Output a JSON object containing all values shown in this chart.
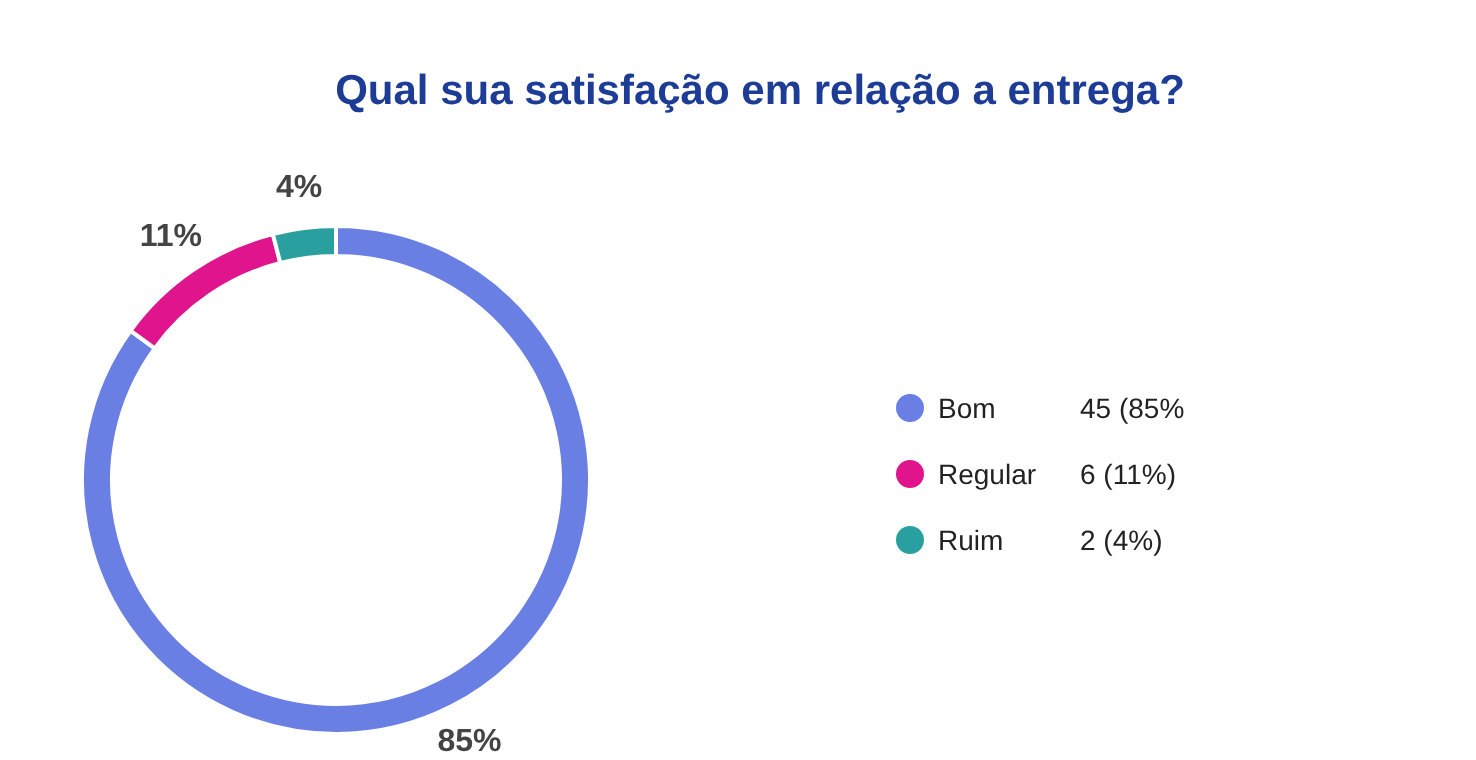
{
  "chart_data": {
    "type": "donut",
    "title": "Qual sua satisfação em relação a entrega?",
    "categories": [
      "Bom",
      "Regular",
      "Ruim"
    ],
    "values": [
      85,
      11,
      4
    ],
    "colors": [
      "#6a7fe3",
      "#e0148c",
      "#2a9fa0"
    ],
    "value_labels": [
      "85%",
      "11%",
      "4%"
    ],
    "annotations": [
      "45 (85%",
      "6 (11%)",
      "2 (4%)"
    ],
    "legend": "right"
  }
}
